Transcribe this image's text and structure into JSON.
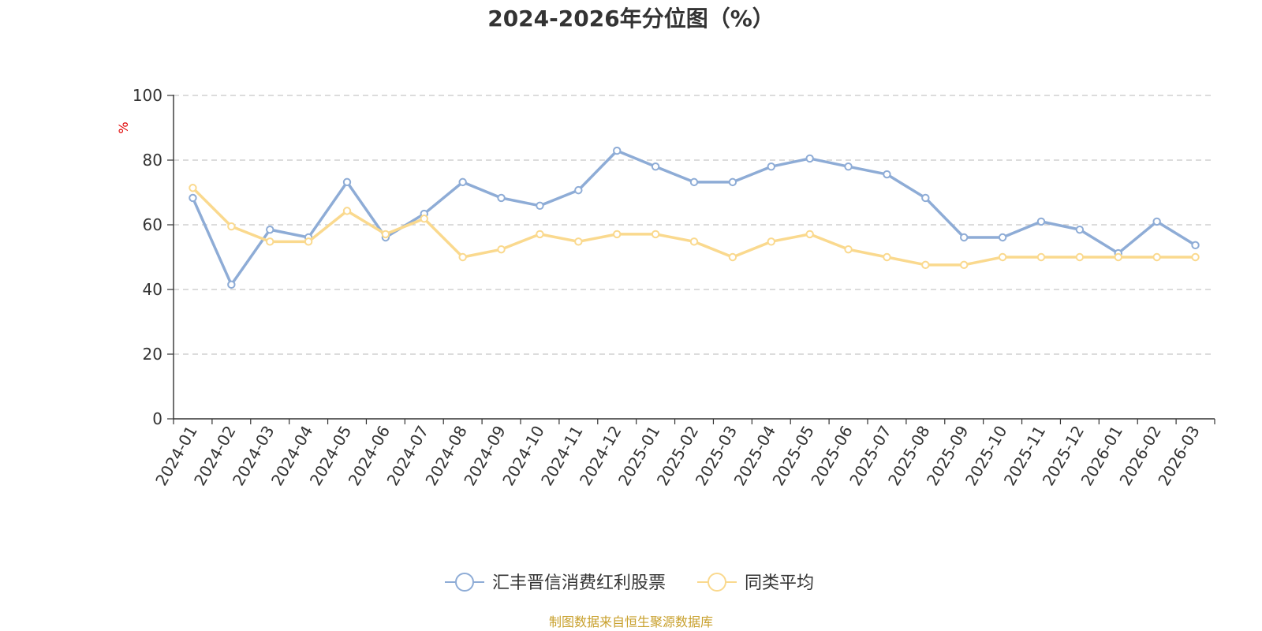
{
  "chart_data": {
    "type": "line",
    "title": "2024-2026年分位图（%）",
    "ylabel": "%",
    "ylim": [
      0,
      100
    ],
    "yticks": [
      0,
      20,
      40,
      60,
      80,
      100
    ],
    "grid": true,
    "legend_position": "bottom",
    "categories": [
      "2024-01",
      "2024-02",
      "2024-03",
      "2024-04",
      "2024-05",
      "2024-06",
      "2024-07",
      "2024-08",
      "2024-09",
      "2024-10",
      "2024-11",
      "2024-12",
      "2025-01",
      "2025-02",
      "2025-03",
      "2025-04",
      "2025-05",
      "2025-06",
      "2025-07",
      "2025-08",
      "2025-09",
      "2025-10",
      "2025-11",
      "2025-12",
      "2026-01",
      "2026-02",
      "2026-03"
    ],
    "series": [
      {
        "name": "汇丰晋信消费红利股票",
        "color": "#8eacd6",
        "values": [
          68.3,
          41.5,
          58.5,
          56.1,
          73.2,
          56.1,
          63.4,
          73.2,
          68.3,
          65.9,
          70.7,
          82.9,
          78.0,
          73.2,
          73.2,
          78.0,
          80.5,
          78.0,
          75.6,
          68.3,
          56.1,
          56.1,
          61.0,
          58.5,
          51.2,
          61.0,
          53.7
        ]
      },
      {
        "name": "同类平均",
        "color": "#fad98e",
        "values": [
          71.4,
          59.5,
          54.8,
          54.8,
          64.3,
          57.1,
          61.9,
          50.0,
          52.4,
          57.1,
          54.8,
          57.1,
          57.1,
          54.8,
          50.0,
          54.8,
          57.1,
          52.4,
          50.0,
          47.6,
          47.6,
          50.0,
          50.0,
          50.0,
          50.0,
          50.0,
          50.0
        ]
      }
    ]
  },
  "source_note": "制图数据来自恒生聚源数据库"
}
